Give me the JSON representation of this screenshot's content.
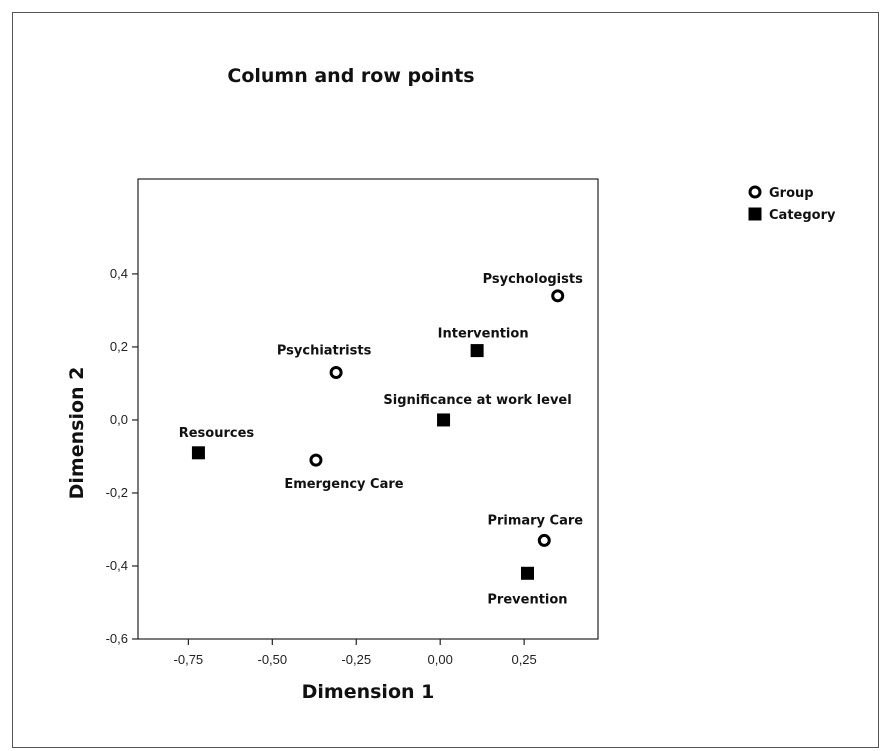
{
  "chart_data": {
    "type": "scatter",
    "title": "Column and row points",
    "xlabel": "Dimension 1",
    "ylabel": "Dimension 2",
    "xlim": [
      -0.9,
      0.47
    ],
    "ylim": [
      -0.6,
      0.66
    ],
    "xticks": [
      {
        "value": -0.75,
        "label": "-0,75"
      },
      {
        "value": -0.5,
        "label": "-0,50"
      },
      {
        "value": -0.25,
        "label": "-0,25"
      },
      {
        "value": 0.0,
        "label": "0,00"
      },
      {
        "value": 0.25,
        "label": "0,25"
      }
    ],
    "yticks": [
      {
        "value": 0.4,
        "label": "0,4"
      },
      {
        "value": 0.2,
        "label": "0,2"
      },
      {
        "value": 0.0,
        "label": "0,0"
      },
      {
        "value": -0.2,
        "label": "-0,2"
      },
      {
        "value": -0.4,
        "label": "-0,4"
      },
      {
        "value": -0.6,
        "label": "-0,6"
      }
    ],
    "legend_position": "top-right",
    "grid": false,
    "series": [
      {
        "name": "Group",
        "marker": "circle",
        "color": "#000000",
        "points": [
          {
            "label": "Psychologists",
            "x": 0.35,
            "y": 0.34
          },
          {
            "label": "Psychiatrists",
            "x": -0.31,
            "y": 0.13
          },
          {
            "label": "Emergency Care",
            "x": -0.37,
            "y": -0.11
          },
          {
            "label": "Primary Care",
            "x": 0.31,
            "y": -0.33
          }
        ]
      },
      {
        "name": "Category",
        "marker": "square",
        "color": "#000000",
        "points": [
          {
            "label": "Intervention",
            "x": 0.11,
            "y": 0.19
          },
          {
            "label": "Significance at work level",
            "x": 0.01,
            "y": 0.0
          },
          {
            "label": "Resources",
            "x": -0.72,
            "y": -0.09
          },
          {
            "label": "Prevention",
            "x": 0.26,
            "y": -0.42
          }
        ]
      }
    ]
  }
}
